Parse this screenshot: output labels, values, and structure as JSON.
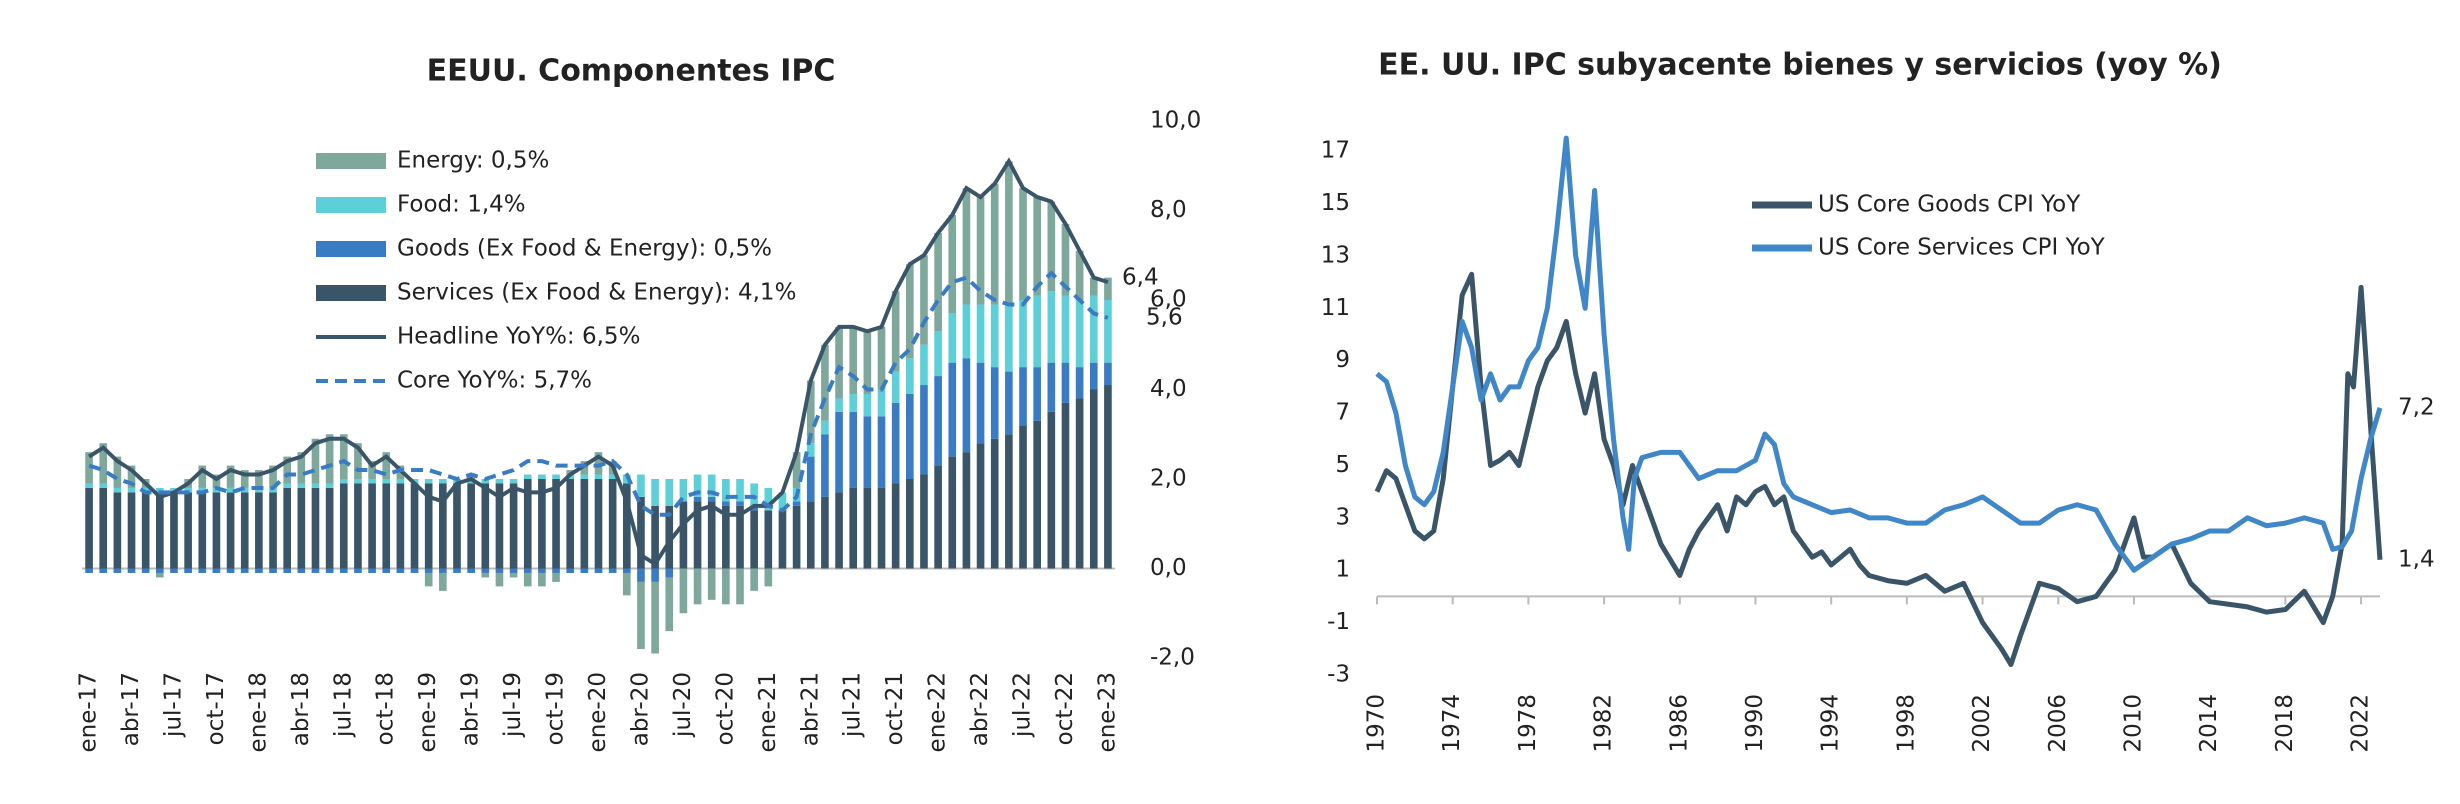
{
  "chart_data": [
    {
      "type": "bar",
      "stacked": true,
      "title": "EEUU. Componentes IPC",
      "categories": [
        "ene-17",
        null,
        null,
        "abr-17",
        null,
        null,
        "jul-17",
        null,
        null,
        "oct-17",
        null,
        null,
        "ene-18",
        null,
        null,
        "abr-18",
        null,
        null,
        "jul-18",
        null,
        null,
        "oct-18",
        null,
        null,
        "ene-19",
        null,
        null,
        "abr-19",
        null,
        null,
        "jul-19",
        null,
        null,
        "oct-19",
        null,
        null,
        "ene-20",
        null,
        null,
        "abr-20",
        null,
        null,
        "jul-20",
        null,
        null,
        "oct-20",
        null,
        null,
        "ene-21",
        null,
        null,
        "abr-21",
        null,
        null,
        "jul-21",
        null,
        null,
        "oct-21",
        null,
        null,
        "ene-22",
        null,
        null,
        "abr-22",
        null,
        null,
        "jul-22",
        null,
        null,
        "oct-22",
        null,
        null,
        "ene-23"
      ],
      "series": [
        {
          "name": "Services (Ex Food & Energy): 4,1%",
          "kind": "bar",
          "color": "#3b5568",
          "values": [
            1.8,
            1.8,
            1.7,
            1.7,
            1.7,
            1.7,
            1.7,
            1.7,
            1.7,
            1.7,
            1.7,
            1.7,
            1.7,
            1.7,
            1.8,
            1.8,
            1.8,
            1.8,
            1.9,
            1.9,
            1.9,
            1.9,
            1.9,
            1.9,
            1.9,
            1.9,
            1.9,
            1.9,
            1.9,
            1.9,
            1.9,
            2.0,
            2.0,
            2.0,
            2.0,
            2.0,
            2.0,
            2.0,
            1.9,
            1.6,
            1.4,
            1.4,
            1.5,
            1.5,
            1.5,
            1.4,
            1.4,
            1.3,
            1.3,
            1.3,
            1.4,
            1.5,
            1.6,
            1.7,
            1.8,
            1.8,
            1.8,
            1.9,
            2.0,
            2.1,
            2.3,
            2.5,
            2.6,
            2.8,
            2.9,
            3.0,
            3.2,
            3.3,
            3.5,
            3.7,
            3.8,
            4.0,
            4.1
          ]
        },
        {
          "name": "Goods (Ex Food & Energy): 0,5%",
          "kind": "bar",
          "color": "#3a7cc4",
          "values": [
            -0.1,
            -0.1,
            -0.1,
            -0.1,
            -0.1,
            -0.1,
            -0.1,
            -0.1,
            -0.1,
            -0.1,
            -0.1,
            -0.1,
            -0.1,
            -0.1,
            -0.1,
            -0.1,
            -0.1,
            -0.1,
            -0.1,
            -0.1,
            -0.1,
            -0.1,
            -0.1,
            -0.1,
            -0.1,
            -0.1,
            -0.1,
            -0.1,
            -0.1,
            -0.1,
            -0.1,
            -0.1,
            -0.1,
            -0.1,
            -0.1,
            -0.1,
            -0.1,
            -0.1,
            -0.1,
            -0.3,
            -0.3,
            -0.2,
            0.0,
            0.1,
            0.1,
            0.1,
            0.1,
            0.1,
            0.0,
            0.0,
            0.1,
            1.0,
            1.4,
            1.8,
            1.7,
            1.6,
            1.6,
            1.8,
            1.9,
            2.0,
            2.0,
            2.1,
            2.1,
            1.8,
            1.6,
            1.4,
            1.3,
            1.2,
            1.1,
            0.9,
            0.7,
            0.6,
            0.5
          ]
        },
        {
          "name": "Food: 1,4%",
          "kind": "bar",
          "color": "#5dcfd8",
          "values": [
            0.1,
            0.1,
            0.1,
            0.1,
            0.1,
            0.1,
            0.1,
            0.1,
            0.1,
            0.1,
            0.1,
            0.1,
            0.1,
            0.1,
            0.1,
            0.1,
            0.1,
            0.1,
            0.1,
            0.1,
            0.1,
            0.1,
            0.1,
            0.1,
            0.1,
            0.1,
            0.1,
            0.1,
            0.1,
            0.1,
            0.1,
            0.1,
            0.1,
            0.1,
            0.1,
            0.1,
            0.1,
            0.1,
            0.2,
            0.5,
            0.6,
            0.6,
            0.5,
            0.5,
            0.5,
            0.5,
            0.5,
            0.5,
            0.5,
            0.4,
            0.3,
            0.3,
            0.3,
            0.3,
            0.4,
            0.5,
            0.6,
            0.7,
            0.8,
            0.9,
            1.0,
            1.1,
            1.2,
            1.3,
            1.4,
            1.5,
            1.5,
            1.6,
            1.6,
            1.5,
            1.5,
            1.5,
            1.4
          ]
        },
        {
          "name": "Energy: 0,5%",
          "kind": "bar",
          "color": "#7fa89d",
          "values": [
            0.7,
            0.9,
            0.7,
            0.5,
            0.2,
            -0.1,
            0.0,
            0.2,
            0.5,
            0.3,
            0.5,
            0.4,
            0.4,
            0.5,
            0.6,
            0.7,
            1.0,
            1.1,
            1.0,
            0.8,
            0.4,
            0.6,
            0.3,
            0.0,
            -0.3,
            -0.4,
            0.0,
            0.1,
            -0.1,
            -0.3,
            -0.1,
            -0.3,
            -0.3,
            -0.2,
            0.1,
            0.3,
            0.5,
            0.3,
            -0.5,
            -1.5,
            -1.6,
            -1.2,
            -1.0,
            -0.8,
            -0.7,
            -0.8,
            -0.8,
            -0.5,
            -0.4,
            0.0,
            0.8,
            1.4,
            1.7,
            1.6,
            1.5,
            1.4,
            1.4,
            1.8,
            2.1,
            2.0,
            2.2,
            2.2,
            2.6,
            2.4,
            2.7,
            3.2,
            2.5,
            2.2,
            2.0,
            1.6,
            1.1,
            0.4,
            0.5
          ]
        },
        {
          "name": "Headline YoY%: 6,5%",
          "kind": "line",
          "dash": false,
          "color": "#3b5568",
          "values": [
            2.5,
            2.7,
            2.4,
            2.2,
            1.9,
            1.6,
            1.7,
            1.9,
            2.2,
            2.0,
            2.2,
            2.1,
            2.1,
            2.2,
            2.4,
            2.5,
            2.8,
            2.9,
            2.9,
            2.7,
            2.3,
            2.5,
            2.2,
            1.9,
            1.6,
            1.5,
            1.9,
            2.0,
            1.8,
            1.6,
            1.8,
            1.7,
            1.7,
            1.8,
            2.1,
            2.3,
            2.5,
            2.3,
            1.5,
            0.3,
            0.1,
            0.6,
            1.0,
            1.3,
            1.4,
            1.2,
            1.2,
            1.4,
            1.4,
            1.7,
            2.6,
            4.2,
            5.0,
            5.4,
            5.4,
            5.3,
            5.4,
            6.2,
            6.8,
            7.0,
            7.5,
            7.9,
            8.5,
            8.3,
            8.6,
            9.1,
            8.5,
            8.3,
            8.2,
            7.7,
            7.1,
            6.5,
            6.4
          ]
        },
        {
          "name": "Core YoY%: 5,7%",
          "kind": "line",
          "dash": true,
          "color": "#3a7cc4",
          "values": [
            2.3,
            2.2,
            2.0,
            1.9,
            1.7,
            1.7,
            1.7,
            1.7,
            1.7,
            1.8,
            1.7,
            1.8,
            1.8,
            1.8,
            2.1,
            2.1,
            2.2,
            2.3,
            2.4,
            2.2,
            2.2,
            2.1,
            2.2,
            2.2,
            2.2,
            2.1,
            2.0,
            2.1,
            2.0,
            2.1,
            2.2,
            2.4,
            2.4,
            2.3,
            2.3,
            2.3,
            2.3,
            2.4,
            2.1,
            1.4,
            1.2,
            1.2,
            1.6,
            1.7,
            1.7,
            1.6,
            1.6,
            1.6,
            1.4,
            1.3,
            1.6,
            3.0,
            3.8,
            4.5,
            4.3,
            4.0,
            4.0,
            4.6,
            4.9,
            5.5,
            6.0,
            6.4,
            6.5,
            6.2,
            6.0,
            5.9,
            5.9,
            6.3,
            6.6,
            6.3,
            6.0,
            5.7,
            5.6
          ]
        }
      ],
      "legend_order": [
        3,
        2,
        1,
        0,
        4,
        5
      ],
      "ylim": [
        -2,
        10
      ],
      "yticks": [
        {
          "value": 10,
          "label": "10,0"
        },
        {
          "value": 8,
          "label": "8,0"
        },
        {
          "value": 6,
          "label": "6,0"
        },
        {
          "value": 4,
          "label": "4,0"
        },
        {
          "value": 2,
          "label": "2,0"
        },
        {
          "value": 0,
          "label": "0,0"
        },
        {
          "value": -2,
          "label": "-2,0"
        }
      ],
      "annotations": [
        {
          "text": "6,4",
          "series": 4
        },
        {
          "text": "5,6",
          "series": 5
        }
      ]
    },
    {
      "type": "line",
      "title": "EE. UU. IPC subyacente bienes y servicios (yoy %)",
      "series": [
        {
          "name": "US Core Goods CPI YoY",
          "color": "#3b5568",
          "x": [
            1970,
            1970.5,
            1971,
            1971.5,
            1972,
            1972.5,
            1973,
            1973.5,
            1974,
            1974.5,
            1975,
            1975.5,
            1976,
            1976.5,
            1977,
            1977.5,
            1978,
            1978.5,
            1979,
            1979.5,
            1980,
            1980.5,
            1981,
            1981.5,
            1982,
            1982.5,
            1983,
            1983.5,
            1984,
            1984.5,
            1985,
            1986,
            1986.5,
            1987,
            1988,
            1988.5,
            1989,
            1989.5,
            1990,
            1990.5,
            1991,
            1991.5,
            1992,
            1993,
            1993.5,
            1994,
            1995,
            1995.5,
            1996,
            1997,
            1998,
            1999,
            2000,
            2001,
            2002,
            2003,
            2003.5,
            2004,
            2005,
            2006,
            2007,
            2008,
            2009,
            2010,
            2010.5,
            2011,
            2012,
            2013,
            2014,
            2015,
            2016,
            2017,
            2018,
            2019,
            2020,
            2020.5,
            2021,
            2021.3,
            2021.6,
            2022,
            2022.5,
            2023
          ],
          "values": [
            4.0,
            4.8,
            4.5,
            3.5,
            2.5,
            2.2,
            2.5,
            4.5,
            8,
            11.5,
            12.3,
            8,
            5,
            5.2,
            5.5,
            5,
            6.5,
            8,
            9,
            9.5,
            10.5,
            8.5,
            7,
            8.5,
            6,
            5,
            3.5,
            5,
            4,
            3,
            2,
            0.8,
            1.8,
            2.5,
            3.5,
            2.5,
            3.8,
            3.5,
            4,
            4.2,
            3.5,
            3.8,
            2.5,
            1.5,
            1.7,
            1.2,
            1.8,
            1.2,
            0.8,
            0.6,
            0.5,
            0.8,
            0.2,
            0.5,
            -1,
            -2,
            -2.6,
            -1.5,
            0.5,
            0.3,
            -0.2,
            0,
            1,
            3,
            1.5,
            1.5,
            2,
            0.5,
            -0.2,
            -0.3,
            -0.4,
            -0.6,
            -0.5,
            0.2,
            -1,
            0,
            2,
            8.5,
            8,
            11.8,
            6.5,
            1.4
          ]
        },
        {
          "name": "US Core Services CPI YoY",
          "color": "#3f87c8",
          "x": [
            1970,
            1970.5,
            1971,
            1971.5,
            1972,
            1972.5,
            1973,
            1973.5,
            1974,
            1974.5,
            1975,
            1975.5,
            1976,
            1976.5,
            1977,
            1977.5,
            1978,
            1978.5,
            1979,
            1979.5,
            1980,
            1980.5,
            1981,
            1981.5,
            1982,
            1982.5,
            1983,
            1983.3,
            1983.6,
            1984,
            1985,
            1986,
            1987,
            1988,
            1989,
            1990,
            1990.5,
            1991,
            1991.5,
            1992,
            1993,
            1994,
            1995,
            1996,
            1997,
            1998,
            1999,
            2000,
            2001,
            2002,
            2003,
            2004,
            2005,
            2006,
            2007,
            2008,
            2009,
            2010,
            2011,
            2012,
            2013,
            2014,
            2015,
            2016,
            2017,
            2018,
            2019,
            2020,
            2020.5,
            2021,
            2021.5,
            2022,
            2022.5,
            2023
          ],
          "values": [
            8.5,
            8.2,
            7,
            5,
            3.8,
            3.5,
            4,
            5.5,
            8,
            10.5,
            9.5,
            7.5,
            8.5,
            7.5,
            8,
            8,
            9,
            9.5,
            11,
            14,
            17.5,
            13,
            11,
            15.5,
            10,
            6,
            3,
            1.8,
            4.5,
            5.3,
            5.5,
            5.5,
            4.5,
            4.8,
            4.8,
            5.2,
            6.2,
            5.8,
            4.3,
            3.8,
            3.5,
            3.2,
            3.3,
            3,
            3,
            2.8,
            2.8,
            3.3,
            3.5,
            3.8,
            3.3,
            2.8,
            2.8,
            3.3,
            3.5,
            3.3,
            2,
            1,
            1.5,
            2,
            2.2,
            2.5,
            2.5,
            3,
            2.7,
            2.8,
            3,
            2.8,
            1.8,
            1.9,
            2.5,
            4.5,
            6,
            7.2
          ]
        }
      ],
      "xlim": [
        1970,
        2023
      ],
      "xticks": [
        1970,
        1974,
        1978,
        1982,
        1986,
        1990,
        1994,
        1998,
        2002,
        2006,
        2010,
        2014,
        2018,
        2022
      ],
      "ylim": [
        -3,
        18
      ],
      "yticks": [
        -3,
        -1,
        1,
        3,
        5,
        7,
        9,
        11,
        13,
        15,
        17
      ],
      "annotations": [
        {
          "text": "7,2",
          "series": 1
        },
        {
          "text": "1,4",
          "series": 0
        }
      ]
    }
  ]
}
